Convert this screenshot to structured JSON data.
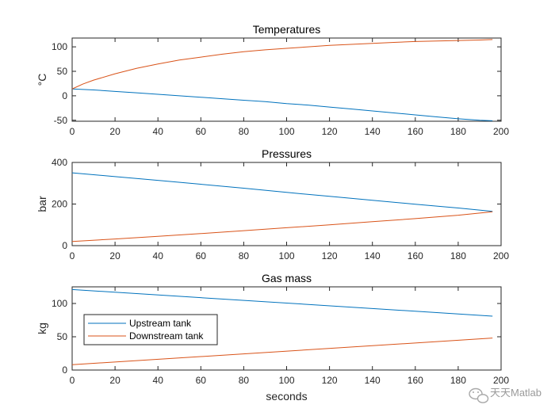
{
  "watermark": {
    "text": "天天Matlab",
    "icon": "wechat-icon"
  },
  "colors": {
    "upstream": "#0072BD",
    "downstream": "#D95319",
    "axis": "#262626"
  },
  "legend": {
    "entries": [
      "Upstream tank",
      "Downstream tank"
    ],
    "placement": "lower-left"
  },
  "chart_data": [
    {
      "type": "line",
      "title": "Temperatures",
      "xlabel": "",
      "ylabel": "°C",
      "xlim": [
        0,
        200
      ],
      "ylim": [
        -52,
        118
      ],
      "xticks": [
        0,
        20,
        40,
        60,
        80,
        100,
        120,
        140,
        160,
        180,
        200
      ],
      "yticks": [
        -50,
        0,
        50,
        100
      ],
      "grid": false,
      "series": [
        {
          "x": [
            0,
            10,
            20,
            30,
            40,
            50,
            60,
            70,
            80,
            90,
            100,
            110,
            120,
            130,
            140,
            150,
            160,
            170,
            180,
            190,
            196
          ],
          "y": [
            14,
            12,
            9,
            6,
            3,
            0,
            -3,
            -6,
            -9,
            -12,
            -16,
            -19,
            -23,
            -27,
            -31,
            -35,
            -39,
            -43,
            -47,
            -50,
            -51
          ]
        },
        {
          "x": [
            0,
            5,
            10,
            20,
            30,
            40,
            50,
            60,
            70,
            80,
            90,
            100,
            110,
            120,
            130,
            140,
            150,
            160,
            170,
            180,
            190,
            196
          ],
          "y": [
            14,
            24,
            32,
            45,
            56,
            65,
            73,
            79,
            85,
            90,
            94,
            97,
            100,
            103,
            105,
            107,
            109,
            111,
            112,
            113,
            114,
            115
          ]
        }
      ]
    },
    {
      "type": "line",
      "title": "Pressures",
      "xlabel": "",
      "ylabel": "bar",
      "xlim": [
        0,
        200
      ],
      "ylim": [
        0,
        400
      ],
      "xticks": [
        0,
        20,
        40,
        60,
        80,
        100,
        120,
        140,
        160,
        180,
        200
      ],
      "yticks": [
        0,
        200,
        400
      ],
      "grid": false,
      "series": [
        {
          "x": [
            0,
            20,
            40,
            60,
            80,
            100,
            120,
            140,
            160,
            180,
            196
          ],
          "y": [
            350,
            332,
            314,
            295,
            276,
            256,
            237,
            218,
            199,
            181,
            165
          ]
        },
        {
          "x": [
            0,
            20,
            40,
            60,
            80,
            100,
            120,
            140,
            160,
            180,
            196
          ],
          "y": [
            20,
            32,
            45,
            58,
            72,
            86,
            100,
            115,
            130,
            146,
            163
          ]
        }
      ]
    },
    {
      "type": "line",
      "title": "Gas mass",
      "xlabel": "seconds",
      "ylabel": "kg",
      "xlim": [
        0,
        200
      ],
      "ylim": [
        0,
        125
      ],
      "xticks": [
        0,
        20,
        40,
        60,
        80,
        100,
        120,
        140,
        160,
        180,
        200
      ],
      "yticks": [
        0,
        50,
        100
      ],
      "grid": false,
      "legend": [
        "Upstream tank",
        "Downstream tank"
      ],
      "series": [
        {
          "name": "Upstream tank",
          "x": [
            0,
            196
          ],
          "y": [
            121,
            81
          ]
        },
        {
          "name": "Downstream tank",
          "x": [
            0,
            196
          ],
          "y": [
            8,
            48
          ]
        }
      ]
    }
  ]
}
